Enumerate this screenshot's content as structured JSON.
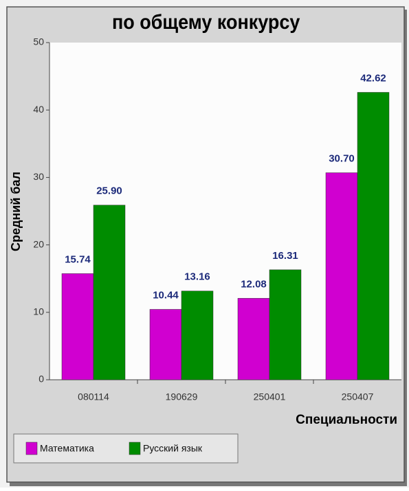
{
  "chart_data": {
    "type": "bar",
    "title": "по общему конкурсу",
    "x_label": "Специальности",
    "y_label": "Средний бал",
    "categories": [
      "080114",
      "190629",
      "250401",
      "250407"
    ],
    "series": [
      {
        "name": "Математика",
        "color": "#d000d0",
        "values": [
          15.74,
          10.44,
          12.08,
          30.7
        ],
        "value_labels": [
          "15.74",
          "10.44",
          "12.08",
          "30.70"
        ]
      },
      {
        "name": "Русский язык",
        "color": "#008c00",
        "values": [
          25.9,
          13.16,
          16.31,
          42.62
        ],
        "value_labels": [
          "25.90",
          "13.16",
          "16.31",
          "42.62"
        ]
      }
    ],
    "ylim": [
      0,
      50
    ],
    "yticks": [
      0,
      10,
      20,
      30,
      40,
      50
    ],
    "grid": false,
    "legend": "bottom-left"
  }
}
